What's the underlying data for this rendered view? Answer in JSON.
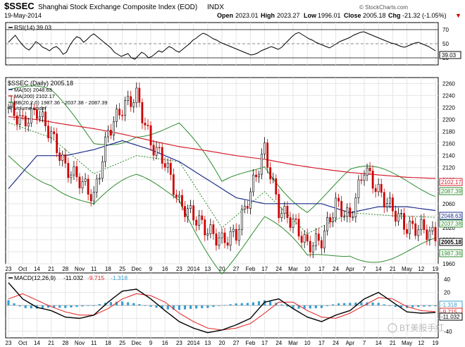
{
  "header": {
    "symbol": "$SSEC",
    "name": "Shanghai Stock Exchange Composite Index (EOD)",
    "exchange": "INDX",
    "date": "19-May-2014",
    "copyright": "© StockCharts.com",
    "open_label": "Open",
    "open_value": "2023.01",
    "high_label": "High",
    "high_value": "2023.27",
    "low_label": "Low",
    "low_value": "1996.01",
    "close_label": "Close",
    "close_value": "2005.18",
    "chg_label": "Chg",
    "chg_value": "-21.32 (-1.05%)",
    "chg_arrow": "▼"
  },
  "watermark": "BT美股手红",
  "colors": {
    "price_up": "#000000",
    "price_down": "#cc0000",
    "ma50": "#1f2f8a",
    "ma200": "#d42030",
    "bb": "#2e8b2e",
    "rsi_line": "#000000",
    "macd_line": "#000000",
    "macd_signal": "#e02020",
    "histogram": "#3a9fd0",
    "grid": "#e6e6e6"
  },
  "chart_data": [
    {
      "type": "line",
      "panel": "RSI",
      "legend": "RSI(14) 39.03",
      "current_value": "39.03",
      "ylim": [
        20,
        80
      ],
      "y_ticks": [
        "70",
        "50",
        "30"
      ],
      "x": [
        0,
        2,
        4,
        6,
        8,
        10,
        12,
        14,
        16,
        18,
        20,
        22,
        24,
        26,
        28,
        30,
        32,
        34,
        36,
        38,
        40,
        42,
        44,
        46,
        48,
        50,
        52,
        54,
        56,
        58,
        60,
        62,
        64,
        66,
        68,
        70,
        72,
        74,
        76,
        78,
        80,
        82,
        84,
        86,
        88,
        90,
        92,
        94,
        96,
        98,
        100,
        102,
        104,
        106,
        108,
        110,
        112,
        114,
        116,
        118,
        120,
        122,
        124,
        126,
        128,
        130,
        132,
        134,
        136,
        138,
        140,
        142,
        144,
        146,
        148,
        150,
        152,
        154,
        156,
        158,
        160,
        162,
        164,
        166,
        168,
        170,
        172,
        174,
        176,
        178,
        180,
        182,
        184,
        186,
        188,
        190,
        192,
        194,
        196,
        198,
        200,
        202,
        204,
        206,
        208,
        210,
        212,
        214,
        216,
        218,
        220,
        222,
        224,
        226,
        228,
        230,
        232,
        234,
        236,
        238,
        240,
        242,
        244,
        246,
        248,
        250
      ],
      "values": [
        52,
        57,
        62,
        55,
        49,
        44,
        41,
        46,
        53,
        50,
        45,
        43,
        40,
        44,
        46,
        42,
        35,
        38,
        48,
        55,
        60,
        58,
        52,
        56,
        61,
        64,
        60,
        56,
        52,
        48,
        44,
        38,
        35,
        32,
        34,
        36,
        30,
        28,
        33,
        38,
        35,
        30,
        32,
        36,
        40,
        38,
        42,
        46,
        44,
        40,
        38,
        42,
        46,
        50,
        55,
        58,
        62,
        65,
        63,
        60,
        57,
        55,
        52,
        50,
        48,
        46,
        44,
        42,
        40,
        38,
        36,
        34,
        35,
        37,
        40,
        42,
        44,
        46,
        44,
        42,
        45,
        50,
        55,
        60,
        64,
        66,
        63,
        60,
        57,
        55,
        52,
        50,
        48,
        46,
        44,
        47,
        50,
        53,
        55,
        57,
        59,
        62,
        64,
        66,
        67,
        65,
        63,
        61,
        59,
        57,
        55,
        53,
        51,
        50,
        48,
        46,
        45,
        47,
        49,
        51,
        52,
        50,
        48,
        46,
        43,
        40
      ],
      "note": "x = trading-day index (0 = 23 Sep 2013, 150 = 19 May 2014)"
    },
    {
      "type": "line",
      "panel": "Price",
      "title": "$SSEC (Daily) 2005.18",
      "ylim": [
        1960,
        2270
      ],
      "y_ticks": [
        1960,
        1980,
        2000,
        2020,
        2040,
        2060,
        2080,
        2100,
        2120,
        2140,
        2160,
        2180,
        2200,
        2220,
        2240,
        2260
      ],
      "x_tick_labels": [
        "23",
        "Oct",
        "14",
        "21",
        "28",
        "Nov",
        "11",
        "18",
        "25",
        "Dec",
        "9",
        "16",
        "23",
        "2014",
        "13",
        "20",
        "27",
        "Feb",
        "17",
        "24",
        "Mar",
        "10",
        "17",
        "24",
        "Apr",
        "7",
        "14",
        "21",
        "May",
        "12",
        "19"
      ],
      "series": [
        {
          "name": "$SSEC (Daily) 2005.18",
          "x": [
            0,
            5,
            10,
            15,
            20,
            25,
            30,
            35,
            40,
            45,
            50,
            55,
            60,
            65,
            70,
            75,
            80,
            85,
            90,
            95,
            100,
            105,
            110,
            115,
            120,
            125,
            130,
            135,
            140,
            145,
            150
          ],
          "values": [
            2220,
            2195,
            2215,
            2175,
            2120,
            2100,
            2070,
            2180,
            2220,
            2240,
            2160,
            2130,
            2060,
            2040,
            2015,
            1998,
            2010,
            2080,
            2150,
            2050,
            2030,
            1990,
            2000,
            2060,
            2035,
            2120,
            2080,
            2050,
            2020,
            2020,
            2005
          ]
        },
        {
          "name": "MA(50) 2048.63",
          "x": [
            0,
            10,
            20,
            30,
            40,
            50,
            60,
            70,
            80,
            90,
            100,
            110,
            120,
            130,
            140,
            150
          ],
          "values": [
            2085,
            2140,
            2140,
            2150,
            2165,
            2150,
            2130,
            2100,
            2070,
            2060,
            2060,
            2060,
            2045,
            2055,
            2055,
            2048.63
          ]
        },
        {
          "name": "MA(200) 2102.17",
          "x": [
            0,
            10,
            20,
            30,
            40,
            50,
            60,
            70,
            80,
            90,
            100,
            110,
            120,
            130,
            140,
            150
          ],
          "values": [
            2205,
            2200,
            2192,
            2185,
            2176,
            2165,
            2155,
            2148,
            2140,
            2134,
            2125,
            2118,
            2112,
            2108,
            2104,
            2102.17
          ]
        },
        {
          "name": "BB(20,2.0) 1987.36 - 2037.38 - 2087.39",
          "x": [
            0,
            15,
            30,
            45,
            60,
            75,
            90,
            105,
            120,
            135,
            150
          ],
          "values": [
            2195,
            2170,
            2110,
            2140,
            2130,
            2020,
            2080,
            2010,
            2045,
            2040,
            2037.38
          ]
        }
      ],
      "legend_extra": [
        "Volume undef"
      ],
      "price_tags": {
        "ma200": "2102.17",
        "bb_upper": "2087.39",
        "ma50": "2048.63",
        "bb_mid": "2037.38",
        "close": "2005.18",
        "bb_lower": "1987.36"
      }
    },
    {
      "type": "line",
      "panel": "MACD",
      "legend_prefix": "MACD(12,26,9)",
      "legend_macd": "-11.032",
      "legend_signal": "-9.715",
      "legend_hist": "-1.318",
      "ylim": [
        -50,
        50
      ],
      "y_ticks": [
        "40",
        "20",
        "-20",
        "-40"
      ],
      "x": [
        0,
        5,
        10,
        15,
        20,
        25,
        30,
        35,
        40,
        45,
        50,
        55,
        60,
        65,
        70,
        75,
        80,
        85,
        90,
        95,
        100,
        105,
        110,
        115,
        120,
        125,
        130,
        135,
        140,
        145,
        150
      ],
      "macd": [
        35,
        10,
        -3,
        -8,
        -18,
        -20,
        -15,
        5,
        22,
        25,
        10,
        -8,
        -25,
        -35,
        -42,
        -38,
        -30,
        -20,
        5,
        10,
        -5,
        -18,
        -25,
        -15,
        -8,
        10,
        20,
        5,
        -10,
        -12,
        -11.032
      ],
      "signal": [
        10,
        18,
        8,
        -2,
        -10,
        -15,
        -15,
        -5,
        10,
        18,
        15,
        5,
        -12,
        -25,
        -35,
        -38,
        -35,
        -28,
        -12,
        5,
        5,
        -8,
        -18,
        -20,
        -12,
        0,
        12,
        10,
        -2,
        -8,
        -9.715
      ],
      "histogram": [
        8,
        -4,
        -5,
        -3,
        -4,
        -2,
        0,
        5,
        6,
        3,
        -2,
        -6,
        -7,
        -5,
        -4,
        0,
        3,
        4,
        8,
        3,
        -5,
        -5,
        -4,
        3,
        4,
        5,
        4,
        -2,
        -4,
        -2,
        -1.318
      ],
      "tags": {
        "hist": "-1.318",
        "signal": "-9.715",
        "macd": "-11.032"
      }
    }
  ]
}
